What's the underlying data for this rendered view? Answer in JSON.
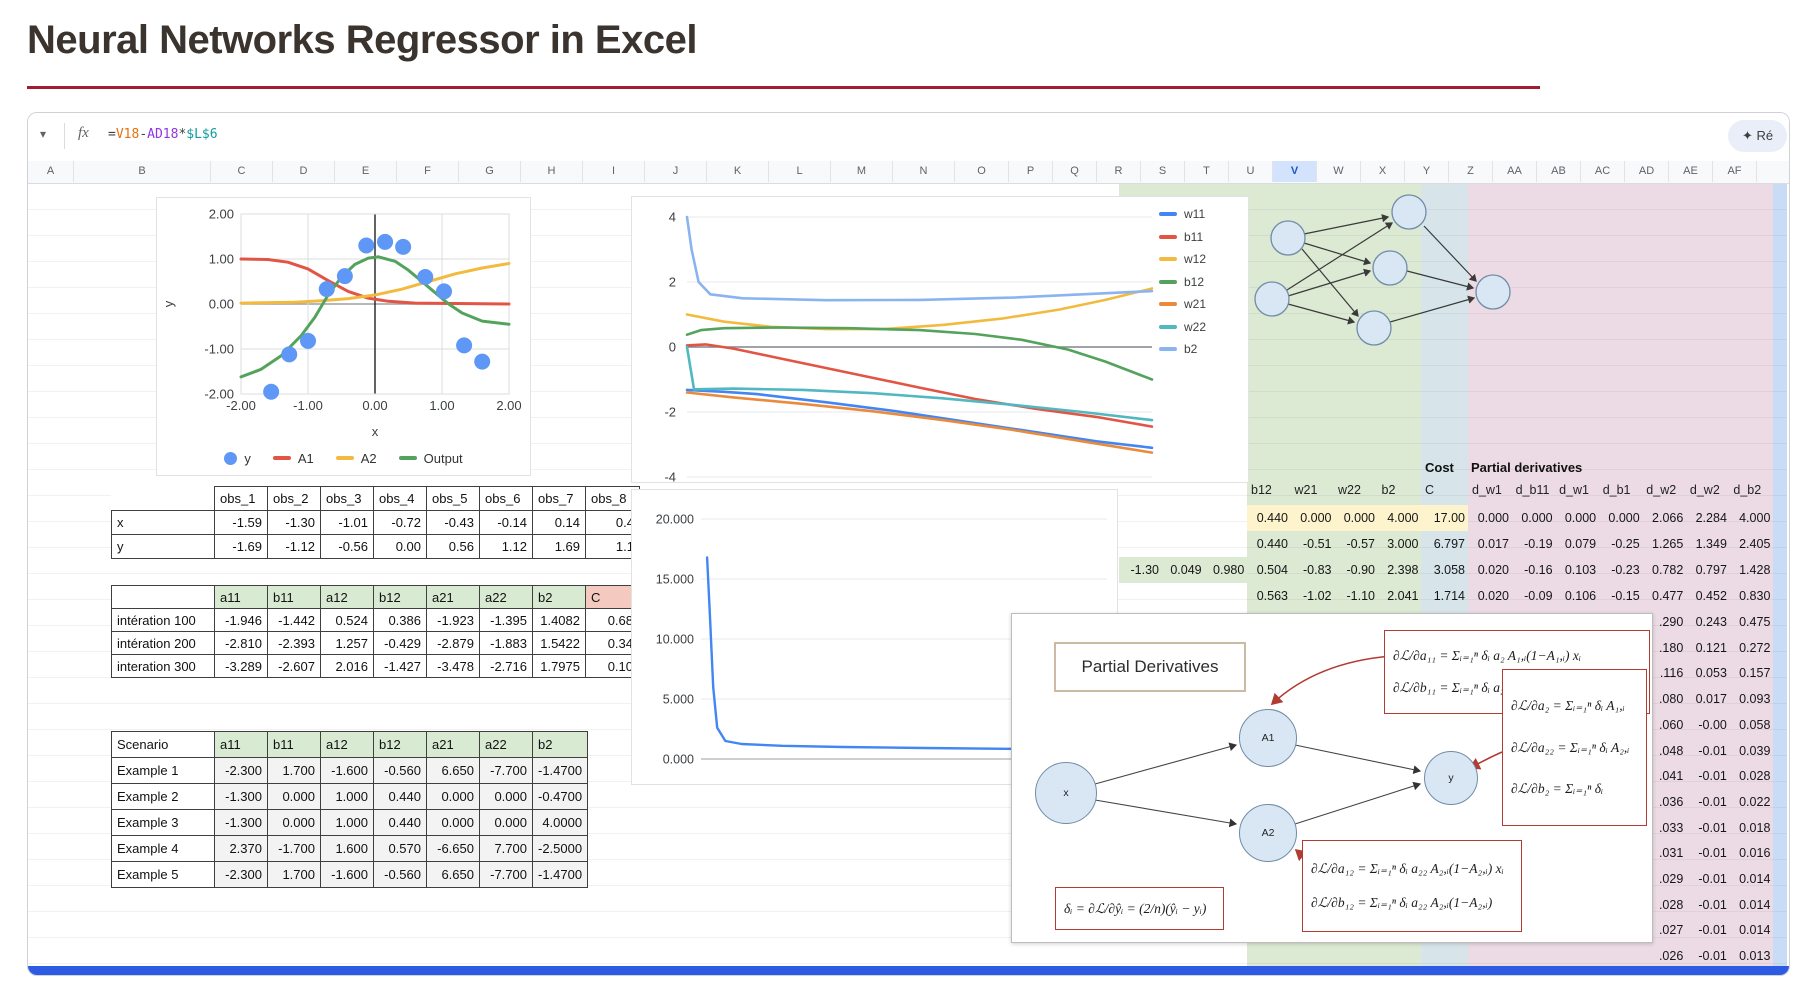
{
  "page": {
    "title": "Neural Networks Regressor in Excel"
  },
  "toolbar": {
    "dropdown_icon": "▾",
    "fx_label": "fx",
    "formula_parts": [
      {
        "text": "=",
        "color": "#3c4043"
      },
      {
        "text": "V18",
        "color": "#e8710a"
      },
      {
        "text": "-",
        "color": "#3c4043"
      },
      {
        "text": "AD18",
        "color": "#9334e6"
      },
      {
        "text": "*",
        "color": "#3c4043"
      },
      {
        "text": "$L$6",
        "color": "#0f9d9d"
      }
    ],
    "assist_button": "✦ Ré"
  },
  "sheet": {
    "columns": [
      "A",
      "B",
      "C",
      "D",
      "E",
      "F",
      "G",
      "H",
      "I",
      "J",
      "K",
      "L",
      "M",
      "N",
      "O",
      "P",
      "Q",
      "R",
      "S",
      "T",
      "U",
      "V",
      "W",
      "X",
      "Y",
      "Z",
      "AA",
      "AB",
      "AC",
      "AD",
      "AE",
      "AF"
    ],
    "selected_column": "V",
    "cost_label": "Cost",
    "partial_label": "Partial derivatives",
    "param_headers": [
      "b12",
      "w21",
      "w22",
      "b2",
      "C",
      "d_w1",
      "d_b11",
      "d_w1",
      "d_b1",
      "d_w2",
      "d_w2",
      "d_b2"
    ],
    "data_rows": [
      {
        "left": [],
        "green": [
          "0.440",
          "0.000",
          "0.000",
          "4.000"
        ],
        "cost": "17.00",
        "pink": [
          "0.000",
          "0.000",
          "0.000",
          "0.000",
          "2.066",
          "2.284",
          "4.000"
        ],
        "highlight": true
      },
      {
        "left": [],
        "green": [
          "0.440",
          "-0.51",
          "-0.57",
          "3.000"
        ],
        "cost": "6.797",
        "pink": [
          "0.017",
          "-0.19",
          "0.079",
          "-0.25",
          "1.265",
          "1.349",
          "2.405"
        ],
        "highlight": false
      },
      {
        "left": [
          "-1.30",
          "0.049",
          "0.980"
        ],
        "green": [
          "0.504",
          "-0.83",
          "-0.90",
          "2.398"
        ],
        "cost": "3.058",
        "pink": [
          "0.020",
          "-0.16",
          "0.103",
          "-0.23",
          "0.782",
          "0.797",
          "1.428"
        ],
        "highlight": false
      },
      {
        "left": [],
        "green": [
          "0.563",
          "-1.02",
          "-1.10",
          "2.041"
        ],
        "cost": "1.714",
        "pink": [
          "0.020",
          "-0.09",
          "0.106",
          "-0.15",
          "0.477",
          "0.452",
          "0.830"
        ],
        "highlight": false
      }
    ],
    "tail_rows": [
      [
        ".290",
        "0.243",
        "0.475"
      ],
      [
        ".180",
        "0.121",
        "0.272"
      ],
      [
        ".116",
        "0.053",
        "0.157"
      ],
      [
        ".080",
        "0.017",
        "0.093"
      ],
      [
        ".060",
        "-0.00",
        "0.058"
      ],
      [
        ".048",
        "-0.01",
        "0.039"
      ],
      [
        ".041",
        "-0.01",
        "0.028"
      ],
      [
        ".036",
        "-0.01",
        "0.022"
      ],
      [
        ".033",
        "-0.01",
        "0.018"
      ],
      [
        ".031",
        "-0.01",
        "0.016"
      ],
      [
        ".029",
        "-0.01",
        "0.014"
      ],
      [
        ".028",
        "-0.01",
        "0.014"
      ],
      [
        ".027",
        "-0.01",
        "0.014"
      ],
      [
        ".026",
        "-0.01",
        "0.013"
      ]
    ]
  },
  "obs_table": {
    "headers": [
      "obs_1",
      "obs_2",
      "obs_3",
      "obs_4",
      "obs_5",
      "obs_6",
      "obs_7",
      "obs_8"
    ],
    "rows": [
      {
        "label": "x",
        "values": [
          "-1.59",
          "-1.30",
          "-1.01",
          "-0.72",
          "-0.43",
          "-0.14",
          "0.14",
          "0.4"
        ]
      },
      {
        "label": "y",
        "values": [
          "-1.69",
          "-1.12",
          "-0.56",
          "0.00",
          "0.56",
          "1.12",
          "1.69",
          "1.1"
        ]
      }
    ]
  },
  "iteration_table": {
    "headers": [
      "a11",
      "b11",
      "a12",
      "b12",
      "a21",
      "a22",
      "b2",
      "C"
    ],
    "rows": [
      {
        "label": "intération 100",
        "values": [
          "-1.946",
          "-1.442",
          "0.524",
          "0.386",
          "-1.923",
          "-1.395",
          "1.4082",
          "0.68"
        ]
      },
      {
        "label": "intération 200",
        "values": [
          "-2.810",
          "-2.393",
          "1.257",
          "-0.429",
          "-2.879",
          "-1.883",
          "1.5422",
          "0.34"
        ]
      },
      {
        "label": "interation 300",
        "values": [
          "-3.289",
          "-2.607",
          "2.016",
          "-1.427",
          "-3.478",
          "-2.716",
          "1.7975",
          "0.10"
        ]
      }
    ]
  },
  "scenario_table": {
    "headers": [
      "Scenario",
      "a11",
      "b11",
      "a12",
      "b12",
      "a21",
      "a22",
      "b2"
    ],
    "rows": [
      {
        "label": "Example 1",
        "values": [
          "-2.300",
          "1.700",
          "-1.600",
          "-0.560",
          "6.650",
          "-7.700",
          "-1.4700"
        ]
      },
      {
        "label": "Example 2",
        "values": [
          "-1.300",
          "0.000",
          "1.000",
          "0.440",
          "0.000",
          "0.000",
          "-0.4700"
        ]
      },
      {
        "label": "Example 3",
        "values": [
          "-1.300",
          "0.000",
          "1.000",
          "0.440",
          "0.000",
          "0.000",
          "4.0000"
        ]
      },
      {
        "label": "Example 4",
        "values": [
          "2.370",
          "-1.700",
          "1.600",
          "0.570",
          "-6.650",
          "7.700",
          "-2.5000"
        ]
      },
      {
        "label": "Example 5",
        "values": [
          "-2.300",
          "1.700",
          "-1.600",
          "-0.560",
          "6.650",
          "-7.700",
          "-1.4700"
        ]
      }
    ]
  },
  "overlay": {
    "title": "Partial Derivatives",
    "nodes": {
      "input": "x",
      "hidden1": "A1",
      "hidden2": "A2",
      "output": "y"
    },
    "formulas": {
      "a11": "∂ℒ/∂a₁₁ = Σᵢ₌₁ⁿ δᵢ a₂ A₁,ᵢ(1−A₁,ᵢ) xᵢ",
      "b11": "∂ℒ/∂b₁₁ = Σᵢ₌₁ⁿ δᵢ a₂ A₁,ᵢ(1−A₁,ᵢ)",
      "a2": "∂ℒ/∂a₂ = Σᵢ₌₁ⁿ δᵢ A₁,ᵢ",
      "a22": "∂ℒ/∂a₂₂ = Σᵢ₌₁ⁿ δᵢ A₂,ᵢ",
      "b2": "∂ℒ/∂b₂ = Σᵢ₌₁ⁿ δᵢ",
      "a12": "∂ℒ/∂a₁₂ = Σᵢ₌₁ⁿ δᵢ a₂₂ A₂,ᵢ(1−A₂,ᵢ) xᵢ",
      "b12": "∂ℒ/∂b₁₂ = Σᵢ₌₁ⁿ δᵢ a₂₂ A₂,ᵢ(1−A₂,ᵢ)",
      "delta": "δᵢ = ∂ℒ/∂ŷᵢ = (2/n)(ŷᵢ − yᵢ)"
    }
  },
  "chart_data": [
    {
      "type": "scatter",
      "title": "",
      "xlabel": "x",
      "ylabel": "y",
      "xlim": [
        -2,
        2
      ],
      "ylim": [
        -2,
        2
      ],
      "xticks": [
        "-2.00",
        "-1.00",
        "0.00",
        "1.00",
        "2.00"
      ],
      "yticks": [
        "2.00",
        "1.00",
        "0.00",
        "-1.00",
        "-2.00"
      ],
      "legend": [
        {
          "label": "y",
          "color": "#5e97f5",
          "type": "dot"
        },
        {
          "label": "A1",
          "color": "#e25444",
          "type": "line"
        },
        {
          "label": "A2",
          "color": "#f2bb40",
          "type": "line"
        },
        {
          "label": "Output",
          "color": "#53a35d",
          "type": "line"
        }
      ],
      "points": [
        [
          -1.55,
          -1.95
        ],
        [
          -1.28,
          -1.12
        ],
        [
          -1.0,
          -0.82
        ],
        [
          -0.72,
          0.33
        ],
        [
          -0.45,
          0.62
        ],
        [
          -0.13,
          1.3
        ],
        [
          0.15,
          1.38
        ],
        [
          0.42,
          1.27
        ],
        [
          0.75,
          0.6
        ],
        [
          1.03,
          0.28
        ],
        [
          1.33,
          -0.92
        ],
        [
          1.6,
          -1.28
        ]
      ],
      "series": [
        {
          "name": "A1",
          "color": "#e25444",
          "points": [
            [
              -2,
              1.0
            ],
            [
              -1.6,
              0.99
            ],
            [
              -1.3,
              0.93
            ],
            [
              -1.0,
              0.78
            ],
            [
              -0.7,
              0.52
            ],
            [
              -0.4,
              0.28
            ],
            [
              -0.1,
              0.13
            ],
            [
              0.2,
              0.06
            ],
            [
              0.6,
              0.02
            ],
            [
              1.2,
              0.01
            ],
            [
              2,
              0.0
            ]
          ]
        },
        {
          "name": "A2",
          "color": "#f2bb40",
          "points": [
            [
              -2,
              0.02
            ],
            [
              -1.2,
              0.04
            ],
            [
              -0.8,
              0.07
            ],
            [
              -0.4,
              0.12
            ],
            [
              0,
              0.2
            ],
            [
              0.4,
              0.33
            ],
            [
              0.8,
              0.5
            ],
            [
              1.2,
              0.67
            ],
            [
              1.6,
              0.8
            ],
            [
              2,
              0.9
            ]
          ]
        },
        {
          "name": "Output",
          "color": "#53a35d",
          "points": [
            [
              -2,
              -1.62
            ],
            [
              -1.7,
              -1.45
            ],
            [
              -1.4,
              -1.15
            ],
            [
              -1.1,
              -0.7
            ],
            [
              -0.9,
              -0.3
            ],
            [
              -0.7,
              0.2
            ],
            [
              -0.5,
              0.6
            ],
            [
              -0.3,
              0.88
            ],
            [
              -0.1,
              1.02
            ],
            [
              0.05,
              1.05
            ],
            [
              0.3,
              0.95
            ],
            [
              0.5,
              0.75
            ],
            [
              0.7,
              0.5
            ],
            [
              0.9,
              0.25
            ],
            [
              1.1,
              0.0
            ],
            [
              1.3,
              -0.2
            ],
            [
              1.6,
              -0.38
            ],
            [
              2,
              -0.45
            ]
          ]
        }
      ]
    },
    {
      "type": "line",
      "title": "",
      "ylim": [
        -4,
        4
      ],
      "yticks": [
        "4",
        "2",
        "0",
        "-2",
        "-4"
      ],
      "legend_position": "right",
      "series": [
        {
          "name": "w11",
          "color": "#4285f4",
          "points": [
            [
              0,
              -1.32
            ],
            [
              0.08,
              -1.38
            ],
            [
              0.15,
              -1.45
            ],
            [
              0.3,
              -1.7
            ],
            [
              0.45,
              -1.98
            ],
            [
              0.6,
              -2.3
            ],
            [
              0.75,
              -2.62
            ],
            [
              0.88,
              -2.9
            ],
            [
              1,
              -3.1
            ]
          ]
        },
        {
          "name": "b11",
          "color": "#e25444",
          "points": [
            [
              0,
              0.05
            ],
            [
              0.04,
              0.08
            ],
            [
              0.1,
              -0.05
            ],
            [
              0.2,
              -0.35
            ],
            [
              0.35,
              -0.8
            ],
            [
              0.5,
              -1.25
            ],
            [
              0.62,
              -1.6
            ],
            [
              0.75,
              -1.9
            ],
            [
              0.88,
              -2.15
            ],
            [
              1,
              -2.45
            ]
          ]
        },
        {
          "name": "w12",
          "color": "#f2bb40",
          "points": [
            [
              0,
              1.0
            ],
            [
              0.08,
              0.78
            ],
            [
              0.18,
              0.62
            ],
            [
              0.3,
              0.55
            ],
            [
              0.42,
              0.55
            ],
            [
              0.55,
              0.68
            ],
            [
              0.68,
              0.88
            ],
            [
              0.8,
              1.15
            ],
            [
              0.9,
              1.45
            ],
            [
              1,
              1.8
            ]
          ]
        },
        {
          "name": "b12",
          "color": "#53a35d",
          "points": [
            [
              0,
              0.38
            ],
            [
              0.03,
              0.52
            ],
            [
              0.08,
              0.58
            ],
            [
              0.2,
              0.6
            ],
            [
              0.35,
              0.58
            ],
            [
              0.5,
              0.52
            ],
            [
              0.62,
              0.4
            ],
            [
              0.72,
              0.22
            ],
            [
              0.82,
              -0.08
            ],
            [
              0.9,
              -0.45
            ],
            [
              1,
              -1.0
            ]
          ]
        },
        {
          "name": "w21",
          "color": "#ea8a3b",
          "points": [
            [
              0,
              -1.4
            ],
            [
              0.1,
              -1.55
            ],
            [
              0.25,
              -1.75
            ],
            [
              0.4,
              -1.98
            ],
            [
              0.55,
              -2.25
            ],
            [
              0.7,
              -2.55
            ],
            [
              0.85,
              -2.9
            ],
            [
              1,
              -3.25
            ]
          ]
        },
        {
          "name": "w22",
          "color": "#52b8c0",
          "points": [
            [
              0,
              0.0
            ],
            [
              0.015,
              -1.3
            ],
            [
              0.1,
              -1.28
            ],
            [
              0.25,
              -1.32
            ],
            [
              0.4,
              -1.42
            ],
            [
              0.55,
              -1.58
            ],
            [
              0.7,
              -1.78
            ],
            [
              0.85,
              -2.0
            ],
            [
              1,
              -2.25
            ]
          ]
        },
        {
          "name": "b2",
          "color": "#8ab4f0",
          "points": [
            [
              0,
              4.0
            ],
            [
              0.01,
              3.0
            ],
            [
              0.025,
              2.0
            ],
            [
              0.05,
              1.62
            ],
            [
              0.12,
              1.5
            ],
            [
              0.3,
              1.44
            ],
            [
              0.5,
              1.45
            ],
            [
              0.7,
              1.52
            ],
            [
              0.85,
              1.62
            ],
            [
              1,
              1.72
            ]
          ]
        }
      ]
    },
    {
      "type": "line",
      "title": "",
      "ylim": [
        0,
        20
      ],
      "yticks": [
        "20.000",
        "15.000",
        "10.000",
        "5.000",
        "0.000"
      ],
      "series": [
        {
          "name": "cost",
          "color": "#4285f4",
          "points": [
            [
              0.015,
              16.8
            ],
            [
              0.022,
              12
            ],
            [
              0.03,
              6
            ],
            [
              0.04,
              2.6
            ],
            [
              0.06,
              1.5
            ],
            [
              0.1,
              1.25
            ],
            [
              0.2,
              1.1
            ],
            [
              0.35,
              1.0
            ],
            [
              0.55,
              0.92
            ],
            [
              0.75,
              0.85
            ],
            [
              0.98,
              0.8
            ]
          ]
        }
      ]
    }
  ],
  "colors": {
    "accent_underline": "#a11d33",
    "band_green": "#dce9d3",
    "band_blue": "#d7e5ea",
    "band_pink": "#ecdbe4",
    "row_highlight": "#fdf3cd",
    "header_green": "#d9ead3",
    "header_pink": "#f3c9c0",
    "selected_col_bg": "#d3e3fd",
    "blue_bar": "#2d5be3",
    "scroll_strip": "#c8dcf5",
    "node_fill": "#d9e7f5",
    "formula_box_red": "#b23b32"
  }
}
